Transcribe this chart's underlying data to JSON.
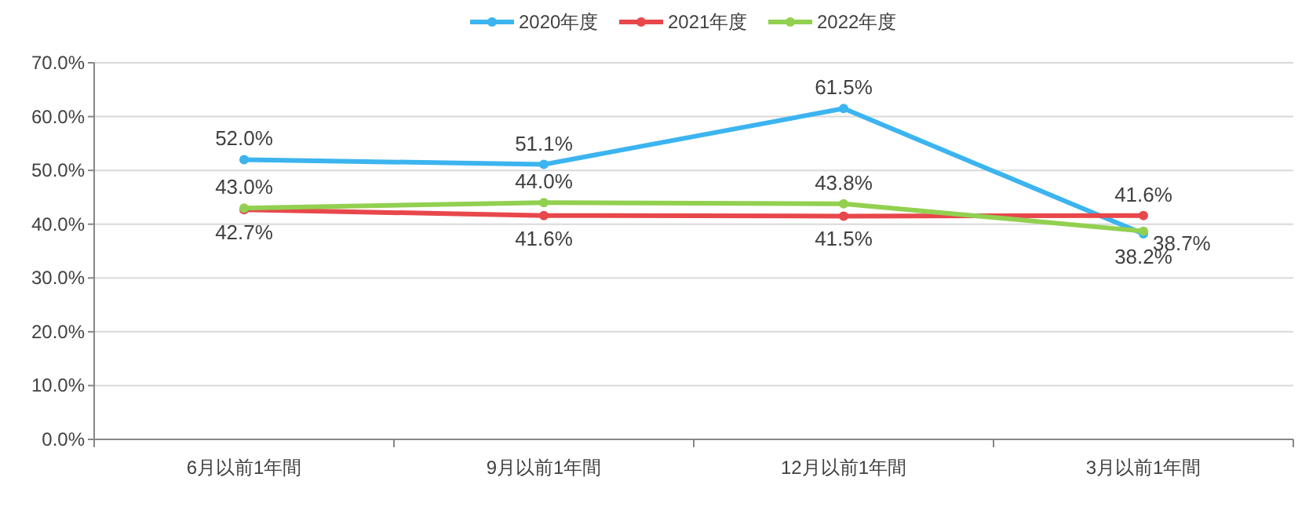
{
  "chart_data": {
    "type": "line",
    "categories": [
      "6月以前1年間",
      "9月以前1年間",
      "12月以前1年間",
      "3月以前1年間"
    ],
    "series": [
      {
        "name": "2020年度",
        "color": "#3cb4f0",
        "values": [
          52.0,
          51.1,
          61.5,
          38.2
        ],
        "value_labels": [
          "52.0%",
          "51.1%",
          "61.5%",
          "38.2%"
        ]
      },
      {
        "name": "2021年度",
        "color": "#e8474b",
        "values": [
          42.7,
          41.6,
          41.5,
          41.6
        ],
        "value_labels": [
          "42.7%",
          "41.6%",
          "41.5%",
          "41.6%"
        ]
      },
      {
        "name": "2022年度",
        "color": "#92d050",
        "values": [
          43.0,
          44.0,
          43.8,
          38.7
        ],
        "value_labels": [
          "43.0%",
          "44.0%",
          "43.8%",
          "38.7%"
        ]
      }
    ],
    "ylim": [
      0,
      70
    ],
    "yticks": [
      {
        "value": 0,
        "label": "0.0%"
      },
      {
        "value": 10,
        "label": "10.0%"
      },
      {
        "value": 20,
        "label": "20.0%"
      },
      {
        "value": 30,
        "label": "30.0%"
      },
      {
        "value": 40,
        "label": "40.0%"
      },
      {
        "value": 50,
        "label": "50.0%"
      },
      {
        "value": 60,
        "label": "60.0%"
      },
      {
        "value": 70,
        "label": "70.0%"
      }
    ],
    "grid": "y",
    "legend": "top",
    "marker": "circle",
    "line_style": "solid"
  }
}
